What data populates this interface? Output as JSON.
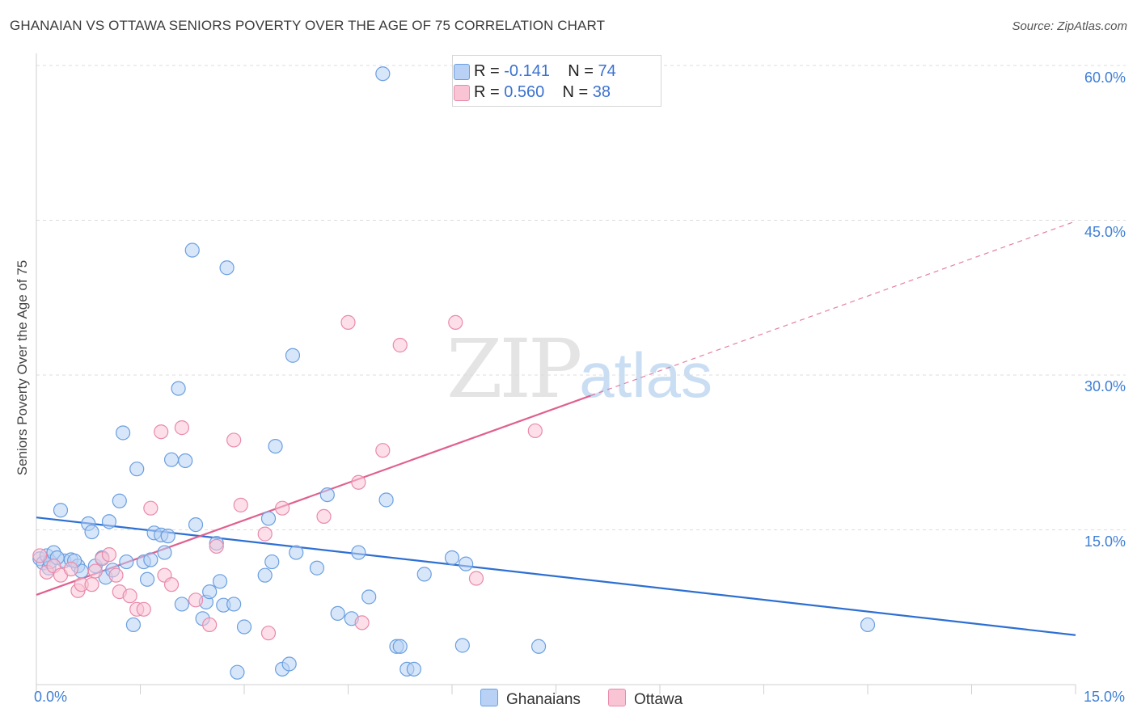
{
  "title": "GHANAIAN VS OTTAWA SENIORS POVERTY OVER THE AGE OF 75 CORRELATION CHART",
  "source": "Source: ZipAtlas.com",
  "watermark": {
    "zip": "ZIP",
    "atlas": "atlas"
  },
  "colors": {
    "blue": "#6a9fe0",
    "blue_fill": "#b8d1f4",
    "blue_line": "#2e6fd2",
    "pink": "#e98aaa",
    "pink_fill": "#f9c5d5",
    "pink_line": "#e0608f"
  },
  "legend": {
    "rows": [
      {
        "r_label": "R =",
        "r_value": "-0.141",
        "n_label": "N =",
        "n_value": "74"
      },
      {
        "r_label": "R =",
        "r_value": "0.560",
        "n_label": "N =",
        "n_value": "38"
      }
    ]
  },
  "bottom_legend": [
    "Ghanaians",
    "Ottawa"
  ],
  "chart_data": {
    "type": "scatter",
    "title": "GHANAIAN VS OTTAWA SENIORS POVERTY OVER THE AGE OF 75 CORRELATION CHART",
    "xlabel": "",
    "ylabel": "Seniors Poverty Over the Age of 75",
    "xlim": [
      0,
      15
    ],
    "ylim": [
      0,
      60
    ],
    "x_tick_labels": [
      "0.0%",
      "15.0%"
    ],
    "y_ticks": [
      15,
      30,
      45,
      60
    ],
    "y_tick_labels": [
      "15.0%",
      "30.0%",
      "45.0%",
      "60.0%"
    ],
    "grid": true,
    "series": [
      {
        "name": "Ghanaians",
        "r": -0.141,
        "n": 74,
        "trend": {
          "x": [
            0,
            15
          ],
          "y": [
            16.2,
            4.8
          ]
        },
        "points": [
          [
            0.05,
            12.2
          ],
          [
            0.1,
            11.8
          ],
          [
            0.15,
            12.5
          ],
          [
            0.18,
            11.3
          ],
          [
            0.2,
            11.9
          ],
          [
            0.25,
            12.8
          ],
          [
            0.35,
            16.9
          ],
          [
            0.4,
            12.0
          ],
          [
            0.5,
            12.1
          ],
          [
            0.6,
            11.5
          ],
          [
            0.65,
            11.0
          ],
          [
            0.75,
            15.6
          ],
          [
            0.8,
            14.8
          ],
          [
            0.85,
            11.5
          ],
          [
            0.95,
            12.3
          ],
          [
            1.0,
            10.4
          ],
          [
            1.05,
            15.8
          ],
          [
            1.1,
            11.1
          ],
          [
            1.2,
            17.8
          ],
          [
            1.25,
            24.4
          ],
          [
            1.3,
            11.9
          ],
          [
            1.4,
            5.8
          ],
          [
            1.45,
            20.9
          ],
          [
            1.55,
            11.9
          ],
          [
            1.6,
            10.2
          ],
          [
            1.65,
            12.1
          ],
          [
            1.7,
            14.7
          ],
          [
            1.8,
            14.5
          ],
          [
            1.85,
            12.8
          ],
          [
            1.9,
            14.4
          ],
          [
            1.95,
            21.8
          ],
          [
            2.05,
            28.7
          ],
          [
            2.1,
            7.8
          ],
          [
            2.15,
            21.7
          ],
          [
            2.25,
            42.1
          ],
          [
            2.3,
            15.5
          ],
          [
            2.4,
            6.4
          ],
          [
            2.45,
            8.0
          ],
          [
            2.5,
            9.0
          ],
          [
            2.6,
            13.7
          ],
          [
            2.65,
            10.0
          ],
          [
            2.7,
            7.7
          ],
          [
            2.75,
            40.4
          ],
          [
            2.85,
            7.8
          ],
          [
            2.9,
            1.2
          ],
          [
            3.0,
            5.6
          ],
          [
            3.3,
            10.6
          ],
          [
            3.35,
            16.1
          ],
          [
            3.4,
            11.9
          ],
          [
            3.45,
            23.1
          ],
          [
            3.55,
            1.5
          ],
          [
            3.65,
            2.0
          ],
          [
            3.7,
            31.9
          ],
          [
            3.75,
            12.8
          ],
          [
            4.05,
            11.3
          ],
          [
            4.2,
            18.4
          ],
          [
            4.35,
            6.9
          ],
          [
            4.55,
            6.4
          ],
          [
            4.65,
            12.8
          ],
          [
            4.8,
            8.5
          ],
          [
            5.0,
            59.2
          ],
          [
            5.05,
            17.9
          ],
          [
            5.2,
            3.7
          ],
          [
            5.25,
            3.7
          ],
          [
            5.35,
            1.5
          ],
          [
            5.45,
            1.5
          ],
          [
            5.6,
            10.7
          ],
          [
            6.0,
            12.3
          ],
          [
            6.15,
            3.8
          ],
          [
            6.2,
            11.7
          ],
          [
            7.25,
            3.7
          ],
          [
            12.0,
            5.8
          ],
          [
            0.3,
            12.3
          ],
          [
            0.55,
            12.0
          ]
        ]
      },
      {
        "name": "Ottawa",
        "r": 0.56,
        "n": 38,
        "trend": {
          "x": [
            0,
            8.0
          ],
          "y": [
            8.7,
            28.0
          ]
        },
        "trend_extension": {
          "x": [
            8.0,
            15.0
          ],
          "y": [
            28.0,
            44.9
          ]
        },
        "points": [
          [
            0.05,
            12.5
          ],
          [
            0.15,
            10.9
          ],
          [
            0.25,
            11.5
          ],
          [
            0.35,
            10.6
          ],
          [
            0.5,
            11.2
          ],
          [
            0.6,
            9.1
          ],
          [
            0.65,
            9.7
          ],
          [
            0.8,
            9.7
          ],
          [
            0.85,
            11.0
          ],
          [
            0.95,
            12.2
          ],
          [
            1.05,
            12.6
          ],
          [
            1.15,
            10.6
          ],
          [
            1.2,
            9.0
          ],
          [
            1.35,
            8.6
          ],
          [
            1.45,
            7.3
          ],
          [
            1.55,
            7.3
          ],
          [
            1.65,
            17.1
          ],
          [
            1.8,
            24.5
          ],
          [
            1.85,
            10.6
          ],
          [
            1.95,
            9.7
          ],
          [
            2.1,
            24.9
          ],
          [
            2.3,
            8.2
          ],
          [
            2.5,
            5.8
          ],
          [
            2.6,
            13.4
          ],
          [
            2.85,
            23.7
          ],
          [
            2.95,
            17.4
          ],
          [
            3.3,
            14.6
          ],
          [
            3.35,
            5.0
          ],
          [
            3.55,
            17.1
          ],
          [
            4.15,
            16.3
          ],
          [
            4.5,
            35.1
          ],
          [
            4.7,
            6.0
          ],
          [
            4.65,
            19.6
          ],
          [
            5.0,
            22.7
          ],
          [
            5.25,
            32.9
          ],
          [
            6.05,
            35.1
          ],
          [
            6.35,
            10.3
          ],
          [
            7.2,
            24.6
          ]
        ]
      }
    ]
  }
}
